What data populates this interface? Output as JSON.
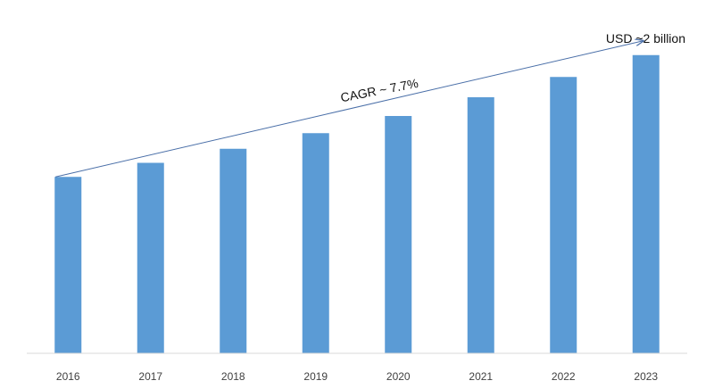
{
  "chart_data": {
    "type": "bar",
    "categories": [
      "2016",
      "2017",
      "2018",
      "2019",
      "2020",
      "2021",
      "2022",
      "2023"
    ],
    "values": [
      1.13,
      1.22,
      1.31,
      1.41,
      1.52,
      1.64,
      1.77,
      1.91
    ],
    "ylim": [
      0,
      2.0
    ],
    "grid": false,
    "legend": "none",
    "annotations": {
      "cagr": "CAGR ~ 7.7%",
      "endpoint": "USD ~2 billion"
    },
    "colors": {
      "bar": "#5b9bd5",
      "arrow": "#4a6fa8",
      "axis": "#d9d9d9",
      "text": "#404040"
    }
  }
}
